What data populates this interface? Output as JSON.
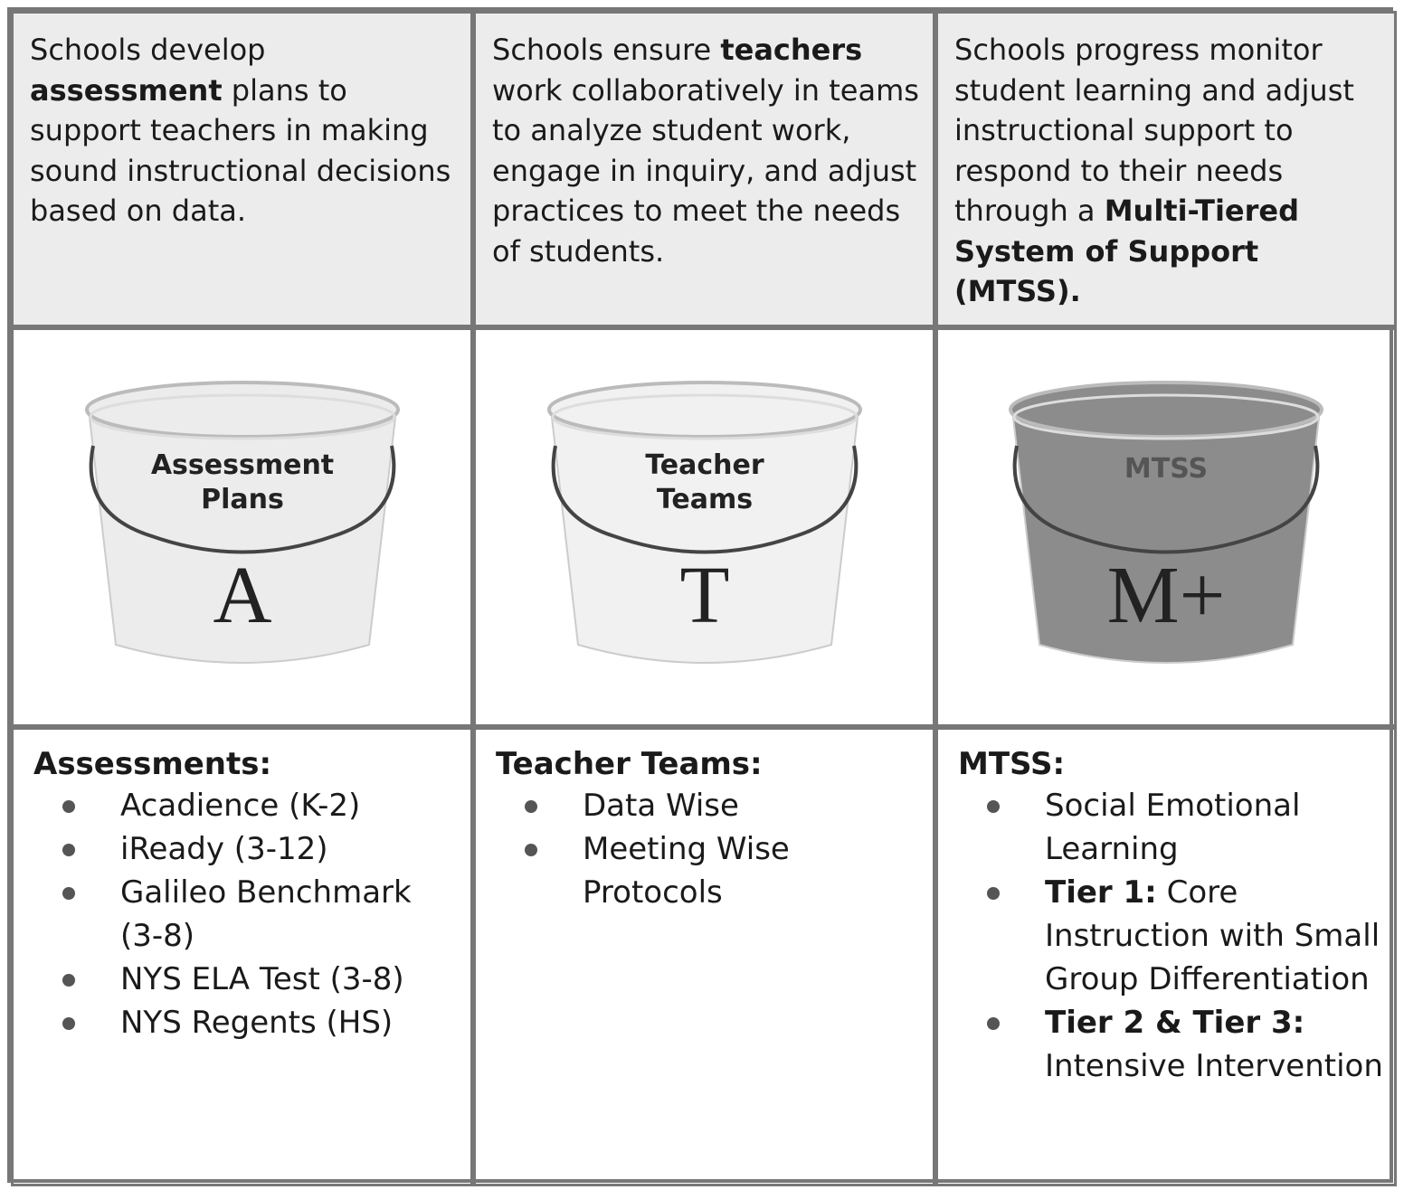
{
  "columns": [
    {
      "intro": [
        {
          "text": "Schools develop ",
          "bold": false
        },
        {
          "text": "assessment",
          "bold": true
        },
        {
          "text": " plans to support teachers in making sound instructional decisions based on data.",
          "bold": false
        }
      ],
      "bucket": {
        "label": [
          "Assessment",
          "Plans"
        ],
        "letter": "A",
        "color": "#ececec"
      },
      "list": {
        "heading": "Assessments:",
        "items": [
          [
            {
              "text": "Acadience (K-2)",
              "bold": false
            }
          ],
          [
            {
              "text": "iReady (3-12)",
              "bold": false
            }
          ],
          [
            {
              "text": "Galileo Benchmark (3-8)",
              "bold": false
            }
          ],
          [
            {
              "text": "NYS ELA Test (3-8)",
              "bold": false
            }
          ],
          [
            {
              "text": "NYS Regents (HS)",
              "bold": false
            }
          ]
        ]
      }
    },
    {
      "intro": [
        {
          "text": "Schools ensure ",
          "bold": false
        },
        {
          "text": "teachers",
          "bold": true
        },
        {
          "text": " work collaboratively in teams to analyze student work, engage in inquiry, and adjust practices to meet the needs of students.",
          "bold": false
        }
      ],
      "bucket": {
        "label": [
          "Teacher",
          "Teams"
        ],
        "letter": "T",
        "color": "#f1f1f1"
      },
      "list": {
        "heading": "Teacher Teams:",
        "items": [
          [
            {
              "text": "Data Wise",
              "bold": false
            }
          ],
          [
            {
              "text": "Meeting Wise Protocols",
              "bold": false
            }
          ]
        ]
      }
    },
    {
      "intro": [
        {
          "text": "Schools progress monitor student learning and adjust instructional support to respond to their needs through a ",
          "bold": false
        },
        {
          "text": "Multi-Tiered System of Support (MTSS).",
          "bold": true
        }
      ],
      "bucket": {
        "label": [
          "MTSS"
        ],
        "letter": "M+",
        "color": "#8c8c8c"
      },
      "list": {
        "heading": "MTSS:",
        "items": [
          [
            {
              "text": "Social Emotional Learning",
              "bold": false
            }
          ],
          [
            {
              "text": "Tier 1:",
              "bold": true
            },
            {
              "text": " Core Instruction with Small Group Differentiation",
              "bold": false
            }
          ],
          [
            {
              "text": "Tier 2 & Tier 3:",
              "bold": true
            },
            {
              "text": " Intensive Intervention",
              "bold": false
            }
          ]
        ]
      }
    }
  ]
}
